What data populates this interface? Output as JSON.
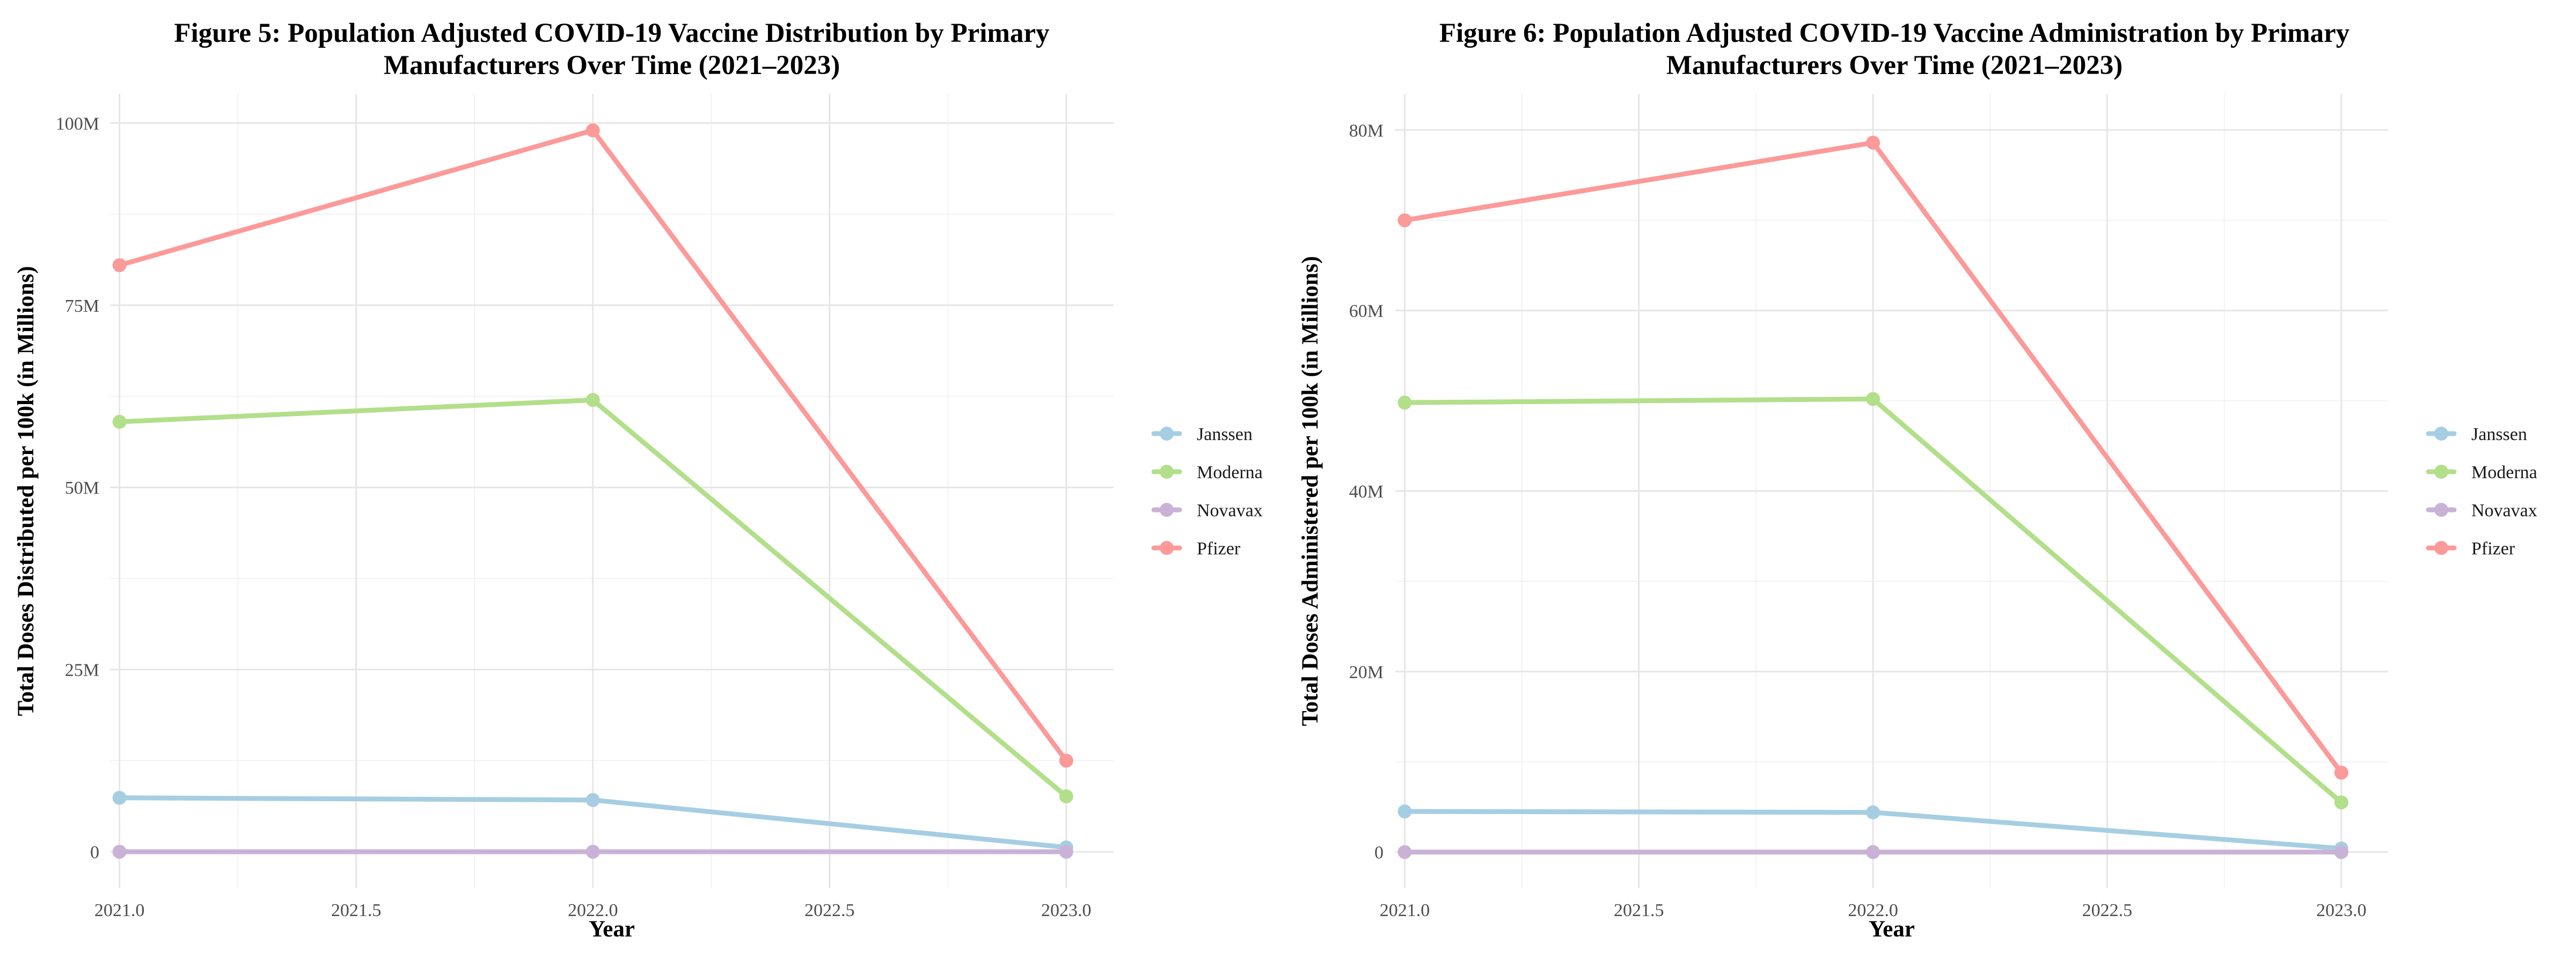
{
  "chart_data": [
    {
      "type": "line",
      "title": "Figure 5: Population Adjusted COVID-19 Vaccine Distribution by Primary Manufacturers Over Time (2021–2023)",
      "title_lines": [
        "Figure 5: Population Adjusted COVID-19 Vaccine Distribution by Primary",
        "Manufacturers Over Time (2021–2023)"
      ],
      "xlabel": "Year",
      "ylabel": "Total Doses Distributed per 100k (in Millions)",
      "x": [
        2021,
        2022,
        2023
      ],
      "x_ticks": [
        2021.0,
        2021.5,
        2022.0,
        2022.5,
        2023.0
      ],
      "x_tick_labels": [
        "2021.0",
        "2021.5",
        "2022.0",
        "2022.5",
        "2023.0"
      ],
      "xlim": [
        2020.98,
        2023.1
      ],
      "y_ticks": [
        0,
        25000000,
        50000000,
        75000000,
        100000000
      ],
      "y_tick_labels": [
        "0",
        "25M",
        "50M",
        "75M",
        "100M"
      ],
      "ylim": [
        -5000000,
        104000000
      ],
      "grid": true,
      "legend_position": "right",
      "series": [
        {
          "name": "Janssen",
          "color": "#a6cee3",
          "values": [
            7400000,
            7100000,
            600000
          ]
        },
        {
          "name": "Moderna",
          "color": "#b2df8a",
          "values": [
            59000000,
            62000000,
            7600000
          ]
        },
        {
          "name": "Novavax",
          "color": "#cab2d6",
          "values": [
            0,
            0,
            0
          ]
        },
        {
          "name": "Pfizer",
          "color": "#fb9a99",
          "values": [
            80500000,
            99000000,
            12500000
          ]
        }
      ]
    },
    {
      "type": "line",
      "title": "Figure 6: Population Adjusted COVID-19 Vaccine Administration by Primary Manufacturers Over Time (2021–2023)",
      "title_lines": [
        "Figure 6: Population Adjusted COVID-19 Vaccine Administration by Primary",
        "Manufacturers Over Time (2021–2023)"
      ],
      "xlabel": "Year",
      "ylabel": "Total Doses Administered per 100k (in Millions)",
      "x": [
        2021,
        2022,
        2023
      ],
      "x_ticks": [
        2021.0,
        2021.5,
        2022.0,
        2022.5,
        2023.0
      ],
      "x_tick_labels": [
        "2021.0",
        "2021.5",
        "2022.0",
        "2022.5",
        "2023.0"
      ],
      "xlim": [
        2020.98,
        2023.1
      ],
      "y_ticks": [
        0,
        20000000,
        40000000,
        60000000,
        80000000
      ],
      "y_tick_labels": [
        "0",
        "20M",
        "40M",
        "60M",
        "80M"
      ],
      "ylim": [
        -4000000,
        84000000
      ],
      "grid": true,
      "legend_position": "right",
      "series": [
        {
          "name": "Janssen",
          "color": "#a6cee3",
          "values": [
            4500000,
            4400000,
            400000
          ]
        },
        {
          "name": "Moderna",
          "color": "#b2df8a",
          "values": [
            49800000,
            50200000,
            5500000
          ]
        },
        {
          "name": "Novavax",
          "color": "#cab2d6",
          "values": [
            0,
            0,
            0
          ]
        },
        {
          "name": "Pfizer",
          "color": "#fb9a99",
          "values": [
            70000000,
            78600000,
            8800000
          ]
        }
      ]
    }
  ]
}
